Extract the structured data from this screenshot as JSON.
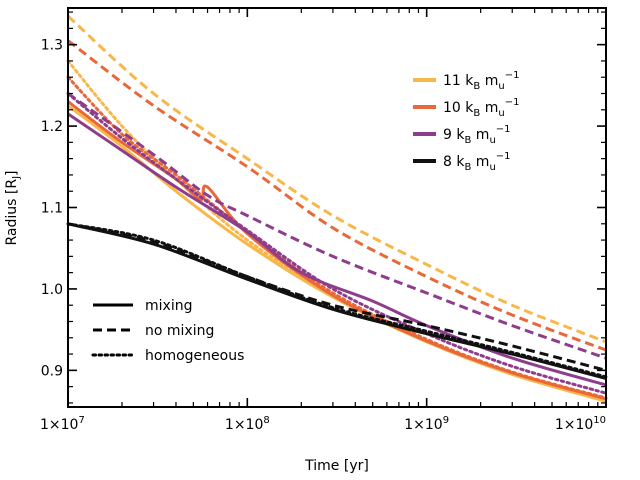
{
  "chart_data": {
    "type": "line",
    "xscale": "log",
    "xlabel": "Time [yr]",
    "ylabel_main": "Radius [R",
    "ylabel_sub": "J",
    "ylabel_end": "]",
    "xlim": [
      10000000,
      10000000000
    ],
    "ylim": [
      0.855,
      1.345
    ],
    "x_ticks": [
      {
        "value": 10000000,
        "base": "1×10",
        "exp": "7"
      },
      {
        "value": 100000000,
        "base": "1×10",
        "exp": "8"
      },
      {
        "value": 1000000000,
        "base": "1×10",
        "exp": "9"
      },
      {
        "value": 10000000000,
        "base": "1×10",
        "exp": "10"
      }
    ],
    "y_ticks": [
      {
        "value": 0.9,
        "label": "0.9"
      },
      {
        "value": 1.0,
        "label": "1.0"
      },
      {
        "value": 1.1,
        "label": "1.1"
      },
      {
        "value": 1.2,
        "label": "1.2"
      },
      {
        "value": 1.3,
        "label": "1.3"
      }
    ],
    "colors": {
      "11": "#f9b74a",
      "10": "#e8683a",
      "9": "#8e3d8c",
      "8": "#111111"
    },
    "legend_entropy": [
      {
        "key": "11",
        "num": "11 k",
        "sub1": "B",
        "mid": " m",
        "sub2": "u",
        "sup": "−1"
      },
      {
        "key": "10",
        "num": "10 k",
        "sub1": "B",
        "mid": " m",
        "sub2": "u",
        "sup": "−1"
      },
      {
        "key": "9",
        "num": "9 k",
        "sub1": "B",
        "mid": " m",
        "sub2": "u",
        "sup": "−1"
      },
      {
        "key": "8",
        "num": "8 k",
        "sub1": "B",
        "mid": " m",
        "sub2": "u",
        "sup": "−1"
      }
    ],
    "legend_style": [
      {
        "style": "solid",
        "label": "mixing"
      },
      {
        "style": "dashed",
        "label": "no mixing"
      },
      {
        "style": "dotted",
        "label": "homogeneous"
      }
    ],
    "series": [
      {
        "name": "11 mixing",
        "color_key": "11",
        "style": "solid",
        "x": [
          10000000,
          20000000,
          40000000,
          100000000,
          300000000,
          1000000000,
          3000000000,
          10000000000
        ],
        "y": [
          1.225,
          1.175,
          1.12,
          1.055,
          0.99,
          0.935,
          0.895,
          0.862
        ]
      },
      {
        "name": "11 no mixing",
        "color_key": "11",
        "style": "dashed",
        "x": [
          10000000,
          30000000,
          100000000,
          300000000,
          1000000000,
          3000000000,
          10000000000
        ],
        "y": [
          1.335,
          1.24,
          1.16,
          1.09,
          1.03,
          0.98,
          0.935
        ]
      },
      {
        "name": "11 homogeneous",
        "color_key": "11",
        "style": "dotted",
        "x": [
          10000000,
          20000000,
          40000000,
          100000000,
          300000000,
          1000000000,
          3000000000,
          10000000000
        ],
        "y": [
          1.28,
          1.2,
          1.135,
          1.06,
          0.993,
          0.937,
          0.897,
          0.865
        ]
      },
      {
        "name": "10 mixing",
        "color_key": "10",
        "style": "solid",
        "x": [
          10000000,
          20000000,
          40000000,
          55000000,
          60000000,
          100000000,
          300000000,
          1000000000,
          3000000000,
          10000000000
        ],
        "y": [
          1.23,
          1.18,
          1.135,
          1.11,
          1.125,
          1.068,
          0.992,
          0.936,
          0.897,
          0.865
        ]
      },
      {
        "name": "10 no mixing",
        "color_key": "10",
        "style": "dashed",
        "x": [
          10000000,
          30000000,
          100000000,
          300000000,
          1000000000,
          3000000000,
          10000000000
        ],
        "y": [
          1.305,
          1.225,
          1.15,
          1.075,
          1.015,
          0.968,
          0.925
        ]
      },
      {
        "name": "10 homogeneous",
        "color_key": "10",
        "style": "dotted",
        "x": [
          10000000,
          20000000,
          40000000,
          100000000,
          300000000,
          1000000000,
          3000000000,
          10000000000
        ],
        "y": [
          1.26,
          1.19,
          1.14,
          1.07,
          0.995,
          0.938,
          0.898,
          0.866
        ]
      },
      {
        "name": "9 mixing",
        "color_key": "9",
        "style": "solid",
        "x": [
          10000000,
          20000000,
          40000000,
          100000000,
          200000000,
          500000000,
          1000000000,
          3000000000,
          10000000000
        ],
        "y": [
          1.215,
          1.17,
          1.125,
          1.07,
          1.02,
          0.985,
          0.955,
          0.915,
          0.882
        ]
      },
      {
        "name": "9 no mixing",
        "color_key": "9",
        "style": "dashed",
        "x": [
          10000000,
          30000000,
          60000000,
          100000000,
          300000000,
          1000000000,
          3000000000,
          10000000000
        ],
        "y": [
          1.24,
          1.165,
          1.115,
          1.09,
          1.04,
          0.995,
          0.955,
          0.915
        ]
      },
      {
        "name": "9 homogeneous",
        "color_key": "9",
        "style": "dotted",
        "x": [
          10000000,
          20000000,
          40000000,
          100000000,
          300000000,
          1000000000,
          3000000000,
          10000000000
        ],
        "y": [
          1.24,
          1.185,
          1.135,
          1.072,
          1.0,
          0.945,
          0.905,
          0.872
        ]
      },
      {
        "name": "8 mixing",
        "color_key": "8",
        "style": "solid",
        "x": [
          10000000,
          30000000,
          100000000,
          300000000,
          1000000000,
          3000000000,
          10000000000
        ],
        "y": [
          1.08,
          1.055,
          1.012,
          0.975,
          0.945,
          0.92,
          0.89
        ]
      },
      {
        "name": "8 no mixing",
        "color_key": "8",
        "style": "dashed",
        "x": [
          10000000,
          30000000,
          100000000,
          300000000,
          1000000000,
          3000000000,
          10000000000
        ],
        "y": [
          1.08,
          1.058,
          1.015,
          0.98,
          0.955,
          0.93,
          0.9
        ]
      },
      {
        "name": "8 homogeneous",
        "color_key": "8",
        "style": "dotted",
        "x": [
          10000000,
          30000000,
          100000000,
          300000000,
          1000000000,
          3000000000,
          10000000000
        ],
        "y": [
          1.08,
          1.06,
          1.015,
          0.977,
          0.948,
          0.922,
          0.892
        ]
      }
    ]
  }
}
